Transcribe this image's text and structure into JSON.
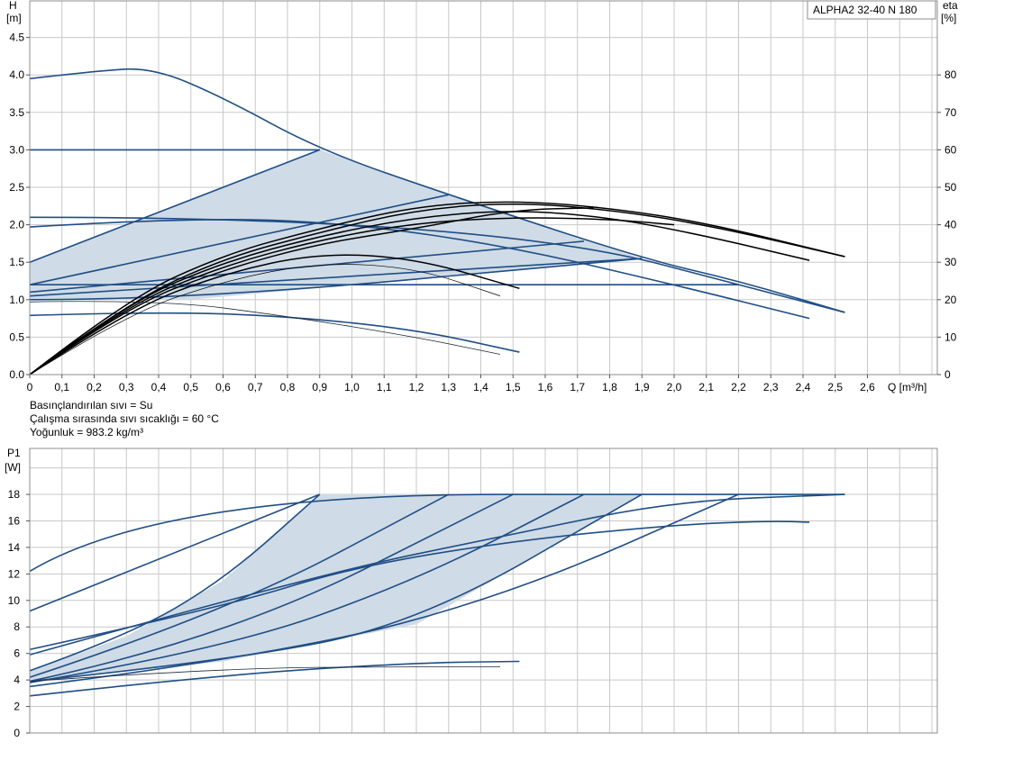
{
  "chart_data": [
    {
      "type": "line",
      "title": "ALPHA2 32-40 N 180",
      "ylabel": "H",
      "ylabel_unit": "[m]",
      "y2label": "eta",
      "y2label_unit": "[%]",
      "xlabel": "Q [m³/h]",
      "xlim": [
        0,
        2.8
      ],
      "ylim": [
        0,
        5.0
      ],
      "y2lim": [
        0,
        100
      ],
      "grid": true,
      "x_ticks": [
        "0",
        "0,1",
        "0,2",
        "0,3",
        "0,4",
        "0,5",
        "0,6",
        "0,7",
        "0,8",
        "0,9",
        "1,0",
        "1,1",
        "1,2",
        "1,3",
        "1,4",
        "1,5",
        "1,6",
        "1,7",
        "1,8",
        "1,9",
        "2,0",
        "2,1",
        "2,2",
        "2,3",
        "2,4",
        "2,5",
        "2,6"
      ],
      "y_ticks": [
        "0.0",
        "0.5",
        "1.0",
        "1.5",
        "2.0",
        "2.5",
        "3.0",
        "3.5",
        "4.0",
        "4.5"
      ],
      "y2_ticks": [
        "0",
        "10",
        "20",
        "30",
        "40",
        "50",
        "60",
        "70",
        "80"
      ],
      "shaded_region": [
        [
          0,
          1.5
        ],
        [
          0.9,
          3.0
        ],
        [
          1.9,
          1.55
        ],
        [
          0.5,
          1.0
        ],
        [
          0,
          1.0
        ]
      ],
      "series": [
        {
          "style": "blue",
          "points": [
            [
              0,
              3.95
            ],
            [
              0.2,
              4.05
            ],
            [
              0.38,
              4.1
            ],
            [
              0.6,
              3.7
            ],
            [
              0.9,
              3.0
            ],
            [
              1.3,
              2.4
            ],
            [
              1.9,
              1.55
            ],
            [
              2.2,
              1.25
            ],
            [
              2.53,
              0.83
            ]
          ]
        },
        {
          "style": "blue",
          "points": [
            [
              0,
              3.0
            ],
            [
              0.9,
              3.0
            ]
          ]
        },
        {
          "style": "blue",
          "points": [
            [
              0,
              1.5
            ],
            [
              0.9,
              3.0
            ]
          ]
        },
        {
          "style": "blue",
          "points": [
            [
              0,
              1.2
            ],
            [
              1.3,
              2.4
            ]
          ]
        },
        {
          "style": "blue",
          "points": [
            [
              0,
              1.1
            ],
            [
              1.72,
              1.78
            ]
          ]
        },
        {
          "style": "blue",
          "points": [
            [
              0,
              1.05
            ],
            [
              1.9,
              1.55
            ]
          ]
        },
        {
          "style": "blue",
          "points": [
            [
              0,
              1.0
            ],
            [
              0.5,
              1.0
            ],
            [
              1.9,
              1.55
            ]
          ]
        },
        {
          "style": "blue",
          "points": [
            [
              0,
              2.1
            ],
            [
              1.4,
              2.1
            ],
            [
              2.53,
              0.83
            ]
          ]
        },
        {
          "style": "blue",
          "points": [
            [
              0,
              1.2
            ],
            [
              2.2,
              1.2
            ]
          ]
        },
        {
          "style": "blue",
          "points": [
            [
              0,
              1.97
            ],
            [
              0.5,
              2.1
            ],
            [
              1.0,
              2.02
            ],
            [
              1.5,
              1.7
            ],
            [
              2.0,
              1.2
            ],
            [
              2.42,
              0.75
            ]
          ]
        },
        {
          "style": "blue",
          "points": [
            [
              0,
              0.79
            ],
            [
              0.4,
              0.84
            ],
            [
              0.8,
              0.78
            ],
            [
              1.2,
              0.6
            ],
            [
              1.52,
              0.3
            ]
          ]
        },
        {
          "style": "thin",
          "points": [
            [
              0,
              0.97
            ],
            [
              0.4,
              1.0
            ],
            [
              0.8,
              0.78
            ],
            [
              1.2,
              0.5
            ],
            [
              1.46,
              0.27
            ]
          ]
        },
        {
          "style": "eta",
          "points": [
            [
              0,
              0
            ],
            [
              0.3,
              19
            ],
            [
              0.6,
              30
            ],
            [
              0.9,
              37
            ],
            [
              1.2,
              42
            ],
            [
              1.5,
              44
            ],
            [
              1.8,
              42
            ],
            [
              2.1,
              37
            ],
            [
              2.42,
              30.5
            ]
          ]
        },
        {
          "style": "eta",
          "points": [
            [
              0,
              0
            ],
            [
              0.3,
              19
            ],
            [
              0.6,
              31
            ],
            [
              0.9,
              38
            ],
            [
              1.2,
              44
            ],
            [
              1.5,
              46
            ],
            [
              1.8,
              44
            ],
            [
              2.1,
              40
            ],
            [
              2.53,
              31.5
            ]
          ]
        },
        {
          "style": "eta",
          "points": [
            [
              0,
              0
            ],
            [
              0.3,
              20
            ],
            [
              0.6,
              32
            ],
            [
              0.9,
              39
            ],
            [
              1.2,
              45
            ],
            [
              1.5,
              46.5
            ],
            [
              1.8,
              44.5
            ],
            [
              2.1,
              40.5
            ],
            [
              2.53,
              31.5
            ]
          ]
        },
        {
          "style": "eta",
          "points": [
            [
              0,
              0
            ],
            [
              0.3,
              18.5
            ],
            [
              0.6,
              29
            ],
            [
              0.9,
              36
            ],
            [
              1.2,
              40.5
            ],
            [
              1.5,
              42
            ],
            [
              1.8,
              41.5
            ],
            [
              2.0,
              40
            ]
          ]
        },
        {
          "style": "eta",
          "points": [
            [
              0,
              0
            ],
            [
              0.3,
              18
            ],
            [
              0.6,
              28
            ],
            [
              0.9,
              35
            ],
            [
              1.2,
              39
            ],
            [
              1.5,
              44
            ],
            [
              1.75,
              44.5
            ]
          ]
        },
        {
          "style": "eta",
          "points": [
            [
              0,
              0
            ],
            [
              0.3,
              17
            ],
            [
              0.6,
              27
            ],
            [
              0.9,
              32.5
            ],
            [
              1.2,
              31
            ],
            [
              1.52,
              23
            ]
          ]
        },
        {
          "style": "etathin",
          "points": [
            [
              0,
              0
            ],
            [
              0.3,
              16
            ],
            [
              0.6,
              25
            ],
            [
              0.9,
              30
            ],
            [
              1.2,
              28.5
            ],
            [
              1.46,
              21
            ]
          ]
        }
      ]
    },
    {
      "type": "line",
      "ylabel": "P1",
      "ylabel_unit": "[W]",
      "xlim": [
        0,
        2.8
      ],
      "ylim": [
        0,
        21.5
      ],
      "grid": true,
      "y_ticks": [
        "0",
        "2",
        "4",
        "6",
        "8",
        "10",
        "12",
        "14",
        "16",
        "18"
      ],
      "shaded_region": [
        [
          0,
          4.7
        ],
        [
          0.3,
          7.3
        ],
        [
          0.6,
          11.5
        ],
        [
          0.9,
          18.0
        ],
        [
          1.9,
          18.0
        ],
        [
          1.2,
          8.2
        ],
        [
          0.6,
          5.4
        ],
        [
          0,
          3.9
        ]
      ],
      "series": [
        {
          "style": "blue",
          "points": [
            [
              0,
              12.2
            ],
            [
              0.4,
              18.0
            ],
            [
              2.53,
              18.0
            ]
          ]
        },
        {
          "style": "blue",
          "points": [
            [
              0,
              9.2
            ],
            [
              0.9,
              18.0
            ]
          ]
        },
        {
          "style": "blue",
          "points": [
            [
              0,
              4.7
            ],
            [
              0.3,
              7.3
            ],
            [
              0.6,
              11.5
            ],
            [
              0.9,
              18.0
            ]
          ]
        },
        {
          "style": "blue",
          "points": [
            [
              0,
              4.2
            ],
            [
              0.6,
              9.0
            ],
            [
              1.3,
              18.0
            ]
          ]
        },
        {
          "style": "blue",
          "points": [
            [
              0,
              3.9
            ],
            [
              0.6,
              7.0
            ],
            [
              1.5,
              18.0
            ]
          ]
        },
        {
          "style": "blue",
          "points": [
            [
              0,
              3.8
            ],
            [
              0.6,
              6.3
            ],
            [
              1.2,
              11.5
            ],
            [
              1.72,
              18.0
            ]
          ]
        },
        {
          "style": "blue",
          "points": [
            [
              0,
              3.9
            ],
            [
              0.6,
              5.4
            ],
            [
              1.2,
              8.2
            ],
            [
              1.9,
              18.0
            ]
          ]
        },
        {
          "style": "blue",
          "points": [
            [
              0,
              3.5
            ],
            [
              0.8,
              6.0
            ],
            [
              1.5,
              10.5
            ],
            [
              2.2,
              18.0
            ]
          ]
        },
        {
          "style": "blue",
          "points": [
            [
              0,
              6.3
            ],
            [
              0.6,
              9.5
            ],
            [
              1.0,
              12.5
            ],
            [
              1.5,
              14.5
            ],
            [
              2.0,
              15.7
            ],
            [
              2.3,
              16.0
            ],
            [
              2.42,
              15.9
            ]
          ]
        },
        {
          "style": "blue",
          "points": [
            [
              0,
              5.9
            ],
            [
              0.9,
              12.0
            ],
            [
              1.5,
              15.0
            ],
            [
              2.0,
              17.5
            ],
            [
              2.53,
              18.0
            ]
          ]
        },
        {
          "style": "blue",
          "points": [
            [
              0,
              2.8
            ],
            [
              0.6,
              4.4
            ],
            [
              1.2,
              5.3
            ],
            [
              1.52,
              5.4
            ]
          ]
        },
        {
          "style": "thin",
          "points": [
            [
              0,
              3.9
            ],
            [
              0.6,
              4.9
            ],
            [
              1.2,
              5.0
            ],
            [
              1.46,
              5.0
            ]
          ]
        }
      ]
    }
  ],
  "info": {
    "line1": "Basınçlandırılan sıvı = Su",
    "line2": "Çalışma sırasında sıvı sıcaklığı = 60 °C",
    "line3": "Yoğunluk = 983.2 kg/m³"
  },
  "colors": {
    "curve": "#1f4e86",
    "eta": "#000000",
    "fill": "#cfdbe6",
    "grid": "#c8c8c8",
    "frame": "#8c8c8c"
  }
}
